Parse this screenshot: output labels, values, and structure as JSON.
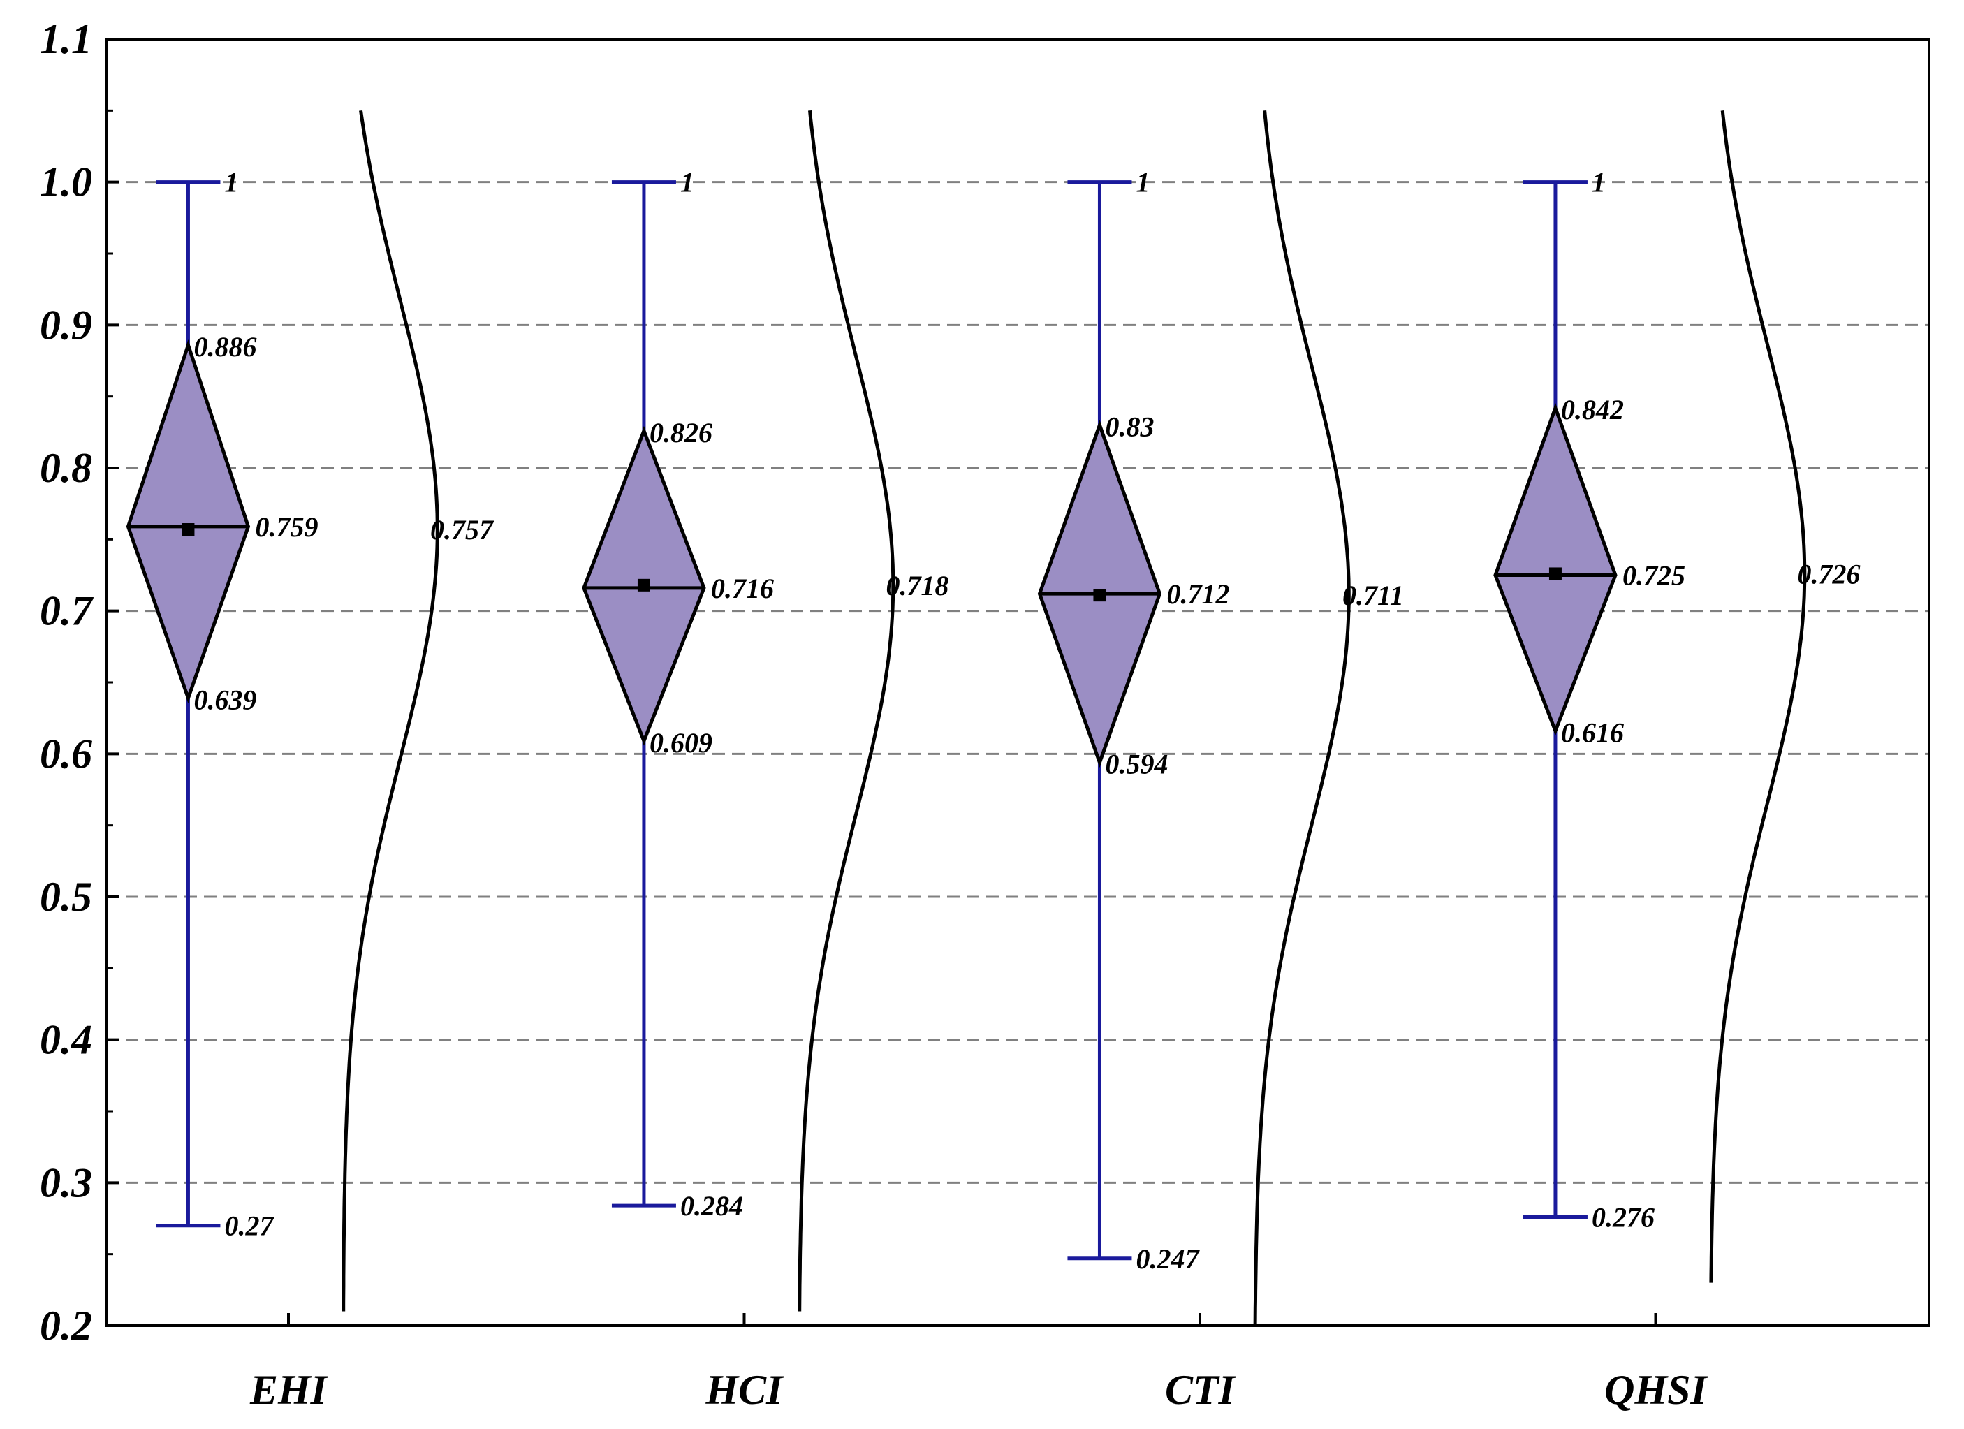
{
  "chart_data": {
    "type": "box",
    "title": "",
    "xlabel": "",
    "ylabel": "",
    "ylim": [
      0.2,
      1.1
    ],
    "yticks": [
      "0.2",
      "0.3",
      "0.4",
      "0.5",
      "0.6",
      "0.7",
      "0.8",
      "0.9",
      "1.0",
      "1.1"
    ],
    "grid": "horizontal-dashed",
    "colors": {
      "box_fill": "#9b8ec4",
      "whisker": "#1a1a9c",
      "curve": "#000000",
      "grid": "#808080"
    },
    "categories": [
      "EHI",
      "HCI",
      "CTI",
      "QHSI"
    ],
    "series": [
      {
        "name": "EHI",
        "min": 0.27,
        "lower": 0.639,
        "median": 0.759,
        "upper": 0.886,
        "max": 1,
        "mean": 0.757,
        "labels": {
          "min": "0.27",
          "lower": "0.639",
          "median": "0.759",
          "upper": "0.886",
          "max": "1",
          "mean": "0.757"
        }
      },
      {
        "name": "HCI",
        "min": 0.284,
        "lower": 0.609,
        "median": 0.716,
        "upper": 0.826,
        "max": 1,
        "mean": 0.718,
        "labels": {
          "min": "0.284",
          "lower": "0.609",
          "median": "0.716",
          "upper": "0.826",
          "max": "1",
          "mean": "0.718"
        }
      },
      {
        "name": "CTI",
        "min": 0.247,
        "lower": 0.594,
        "median": 0.712,
        "upper": 0.83,
        "max": 1,
        "mean": 0.711,
        "labels": {
          "min": "0.247",
          "lower": "0.594",
          "median": "0.712",
          "upper": "0.83",
          "max": "1",
          "mean": "0.711"
        }
      },
      {
        "name": "QHSI",
        "min": 0.276,
        "lower": 0.616,
        "median": 0.725,
        "upper": 0.842,
        "max": 1,
        "mean": 0.726,
        "labels": {
          "min": "0.276",
          "lower": "0.616",
          "median": "0.725",
          "upper": "0.842",
          "max": "1",
          "mean": "0.726"
        }
      }
    ],
    "distribution_curves": [
      {
        "name": "EHI",
        "mu": 0.757,
        "sigma": 0.16,
        "y_from": 0.21,
        "y_to": 1.05
      },
      {
        "name": "HCI",
        "mu": 0.718,
        "sigma": 0.16,
        "y_from": 0.21,
        "y_to": 1.05
      },
      {
        "name": "CTI",
        "mu": 0.711,
        "sigma": 0.16,
        "y_from": 0.2,
        "y_to": 1.05
      },
      {
        "name": "QHSI",
        "mu": 0.726,
        "sigma": 0.16,
        "y_from": 0.23,
        "y_to": 1.05
      }
    ]
  }
}
